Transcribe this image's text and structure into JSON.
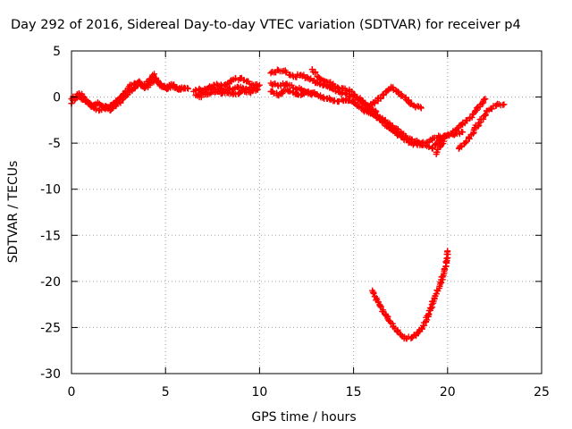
{
  "chart_data": {
    "type": "scatter",
    "title": "Day 292 of 2016, Sidereal Day-to-day VTEC variation (SDTVAR) for receiver p4",
    "xlabel": "GPS time / hours",
    "ylabel": "SDTVAR / TECUs",
    "xlim": [
      0,
      25
    ],
    "ylim": [
      -30,
      5
    ],
    "x_ticks": [
      0,
      5,
      10,
      15,
      20,
      25
    ],
    "y_ticks": [
      5,
      0,
      -5,
      -10,
      -15,
      -20,
      -25,
      -30
    ],
    "x_tick_labels": [
      "0",
      "5",
      "10",
      "15",
      "20",
      "25"
    ],
    "y_tick_labels": [
      "5",
      "0",
      "-5",
      "-10",
      "-15",
      "-20",
      "-25",
      "-30"
    ],
    "grid": true,
    "marker": "plus",
    "series_color": "#ff0000",
    "series": [
      {
        "x": [
          0.0,
          0.2,
          0.4,
          0.6,
          0.8,
          1.0,
          1.2,
          1.4,
          1.6,
          1.8,
          2.0,
          2.2,
          2.4,
          2.6,
          2.8,
          3.0,
          3.2,
          3.5,
          3.8,
          4.0,
          4.2,
          4.4,
          4.6,
          4.8,
          5.0,
          5.2,
          5.5,
          5.8,
          6.0,
          6.2
        ],
        "y": [
          -0.7,
          -0.2,
          0.4,
          0.1,
          -0.4,
          -0.8,
          -1.0,
          -0.6,
          -0.9,
          -1.3,
          -1.1,
          -0.8,
          -0.4,
          0.0,
          0.4,
          0.9,
          1.3,
          1.5,
          1.2,
          1.4,
          2.0,
          2.5,
          1.6,
          1.2,
          1.0,
          1.3,
          1.1,
          0.8,
          1.0,
          0.9
        ]
      },
      {
        "x": [
          0.0,
          0.3,
          0.6,
          0.9,
          1.2,
          1.5,
          1.8,
          2.1,
          2.4,
          2.7,
          3.0,
          3.3,
          3.6,
          3.9,
          4.2,
          4.5,
          4.8,
          5.1,
          5.4,
          5.7,
          6.0
        ],
        "y": [
          -0.2,
          0.3,
          -0.3,
          -0.7,
          -1.2,
          -1.4,
          -1.0,
          -1.4,
          -0.8,
          -0.3,
          0.3,
          0.9,
          1.7,
          1.0,
          1.5,
          2.0,
          1.1,
          0.9,
          1.3,
          0.8,
          1.0
        ]
      },
      {
        "x": [
          6.5,
          6.8,
          7.0,
          7.3,
          7.6,
          8.0,
          8.3,
          8.6,
          9.0,
          9.3,
          9.6,
          10.0
        ],
        "y": [
          0.6,
          0.9,
          0.7,
          1.0,
          1.3,
          1.2,
          1.5,
          1.9,
          2.0,
          1.7,
          1.4,
          1.3
        ]
      },
      {
        "x": [
          6.6,
          6.9,
          7.2,
          7.5,
          7.8,
          8.1,
          8.4,
          8.7,
          9.0,
          9.3,
          9.6,
          9.9
        ],
        "y": [
          0.2,
          0.5,
          0.8,
          1.0,
          0.9,
          0.7,
          0.8,
          1.0,
          1.1,
          0.9,
          1.0,
          0.8
        ]
      },
      {
        "x": [
          6.8,
          7.1,
          7.4,
          7.7,
          8.0,
          8.3,
          8.6,
          8.9,
          9.2,
          9.5,
          9.8
        ],
        "y": [
          0.0,
          0.3,
          0.5,
          0.6,
          0.4,
          0.5,
          0.3,
          0.4,
          0.6,
          0.5,
          0.7
        ]
      },
      {
        "x": [
          10.6,
          11.0,
          11.4,
          11.8,
          12.2,
          12.6,
          13.0,
          13.4,
          13.8,
          14.2,
          14.6,
          15.0,
          15.4,
          15.8,
          16.2
        ],
        "y": [
          2.6,
          2.9,
          2.7,
          2.2,
          2.4,
          2.0,
          1.6,
          1.3,
          1.0,
          0.6,
          0.3,
          0.0,
          -0.5,
          -1.0,
          -1.6
        ]
      },
      {
        "x": [
          10.6,
          11.0,
          11.4,
          11.8,
          12.2,
          12.6,
          13.0,
          13.4,
          13.8,
          14.2,
          14.6,
          15.0,
          15.4,
          15.8,
          16.2,
          16.6
        ],
        "y": [
          1.5,
          1.2,
          1.4,
          1.0,
          0.8,
          0.4,
          0.3,
          0.0,
          -0.3,
          -0.5,
          -0.2,
          -0.6,
          -1.2,
          -1.7,
          -2.0,
          -2.6
        ]
      },
      {
        "x": [
          10.6,
          11.0,
          11.4,
          11.8,
          12.2,
          12.6,
          13.0
        ],
        "y": [
          0.6,
          0.2,
          0.8,
          0.5,
          0.2,
          0.6,
          0.3
        ]
      },
      {
        "x": [
          12.8,
          13.2,
          13.6,
          14.0,
          14.4,
          14.8,
          15.2,
          15.6,
          16.0,
          16.4,
          16.8,
          17.2,
          17.6,
          18.0,
          18.4,
          18.8,
          19.2,
          19.6,
          20.0,
          20.4,
          20.8,
          21.2,
          21.6,
          22.0
        ],
        "y": [
          3.0,
          2.0,
          1.6,
          1.2,
          0.9,
          0.6,
          0.0,
          -0.8,
          -1.6,
          -2.4,
          -3.2,
          -3.8,
          -4.4,
          -4.9,
          -5.2,
          -5.0,
          -4.5,
          -4.3,
          -4.1,
          -3.6,
          -3.0,
          -2.2,
          -1.2,
          -0.2
        ]
      },
      {
        "x": [
          15.6,
          16.0,
          16.4,
          16.8,
          17.2,
          17.6,
          18.0,
          18.4,
          18.8,
          19.2,
          19.6,
          20.0,
          20.4,
          20.8
        ],
        "y": [
          -1.3,
          -1.8,
          -2.2,
          -2.8,
          -3.4,
          -4.0,
          -4.5,
          -4.9,
          -5.2,
          -5.6,
          -4.6,
          -4.2,
          -4.0,
          -3.8
        ]
      },
      {
        "x": [
          15.8,
          16.2,
          16.6,
          17.0,
          17.4,
          17.8,
          18.2,
          18.6
        ],
        "y": [
          -1.0,
          -0.4,
          0.2,
          1.1,
          0.5,
          -0.3,
          -0.9,
          -1.2
        ]
      },
      {
        "x": [
          20.6,
          21.0,
          21.4,
          21.8,
          22.2,
          22.6,
          23.0
        ],
        "y": [
          -5.6,
          -4.8,
          -3.6,
          -2.4,
          -1.4,
          -0.9,
          -0.8
        ]
      },
      {
        "x": [
          19.4,
          19.6,
          19.8
        ],
        "y": [
          -6.2,
          -5.4,
          -4.8
        ]
      },
      {
        "x": [
          16.0,
          16.3,
          16.6,
          16.9,
          17.2,
          17.5,
          17.8,
          18.1,
          18.4,
          18.7,
          19.0,
          19.3,
          19.6,
          19.9,
          20.0
        ],
        "y": [
          -21.0,
          -22.2,
          -23.3,
          -24.3,
          -25.1,
          -25.8,
          -26.2,
          -26.1,
          -25.6,
          -24.8,
          -23.6,
          -21.8,
          -20.3,
          -18.4,
          -16.7
        ]
      }
    ]
  }
}
